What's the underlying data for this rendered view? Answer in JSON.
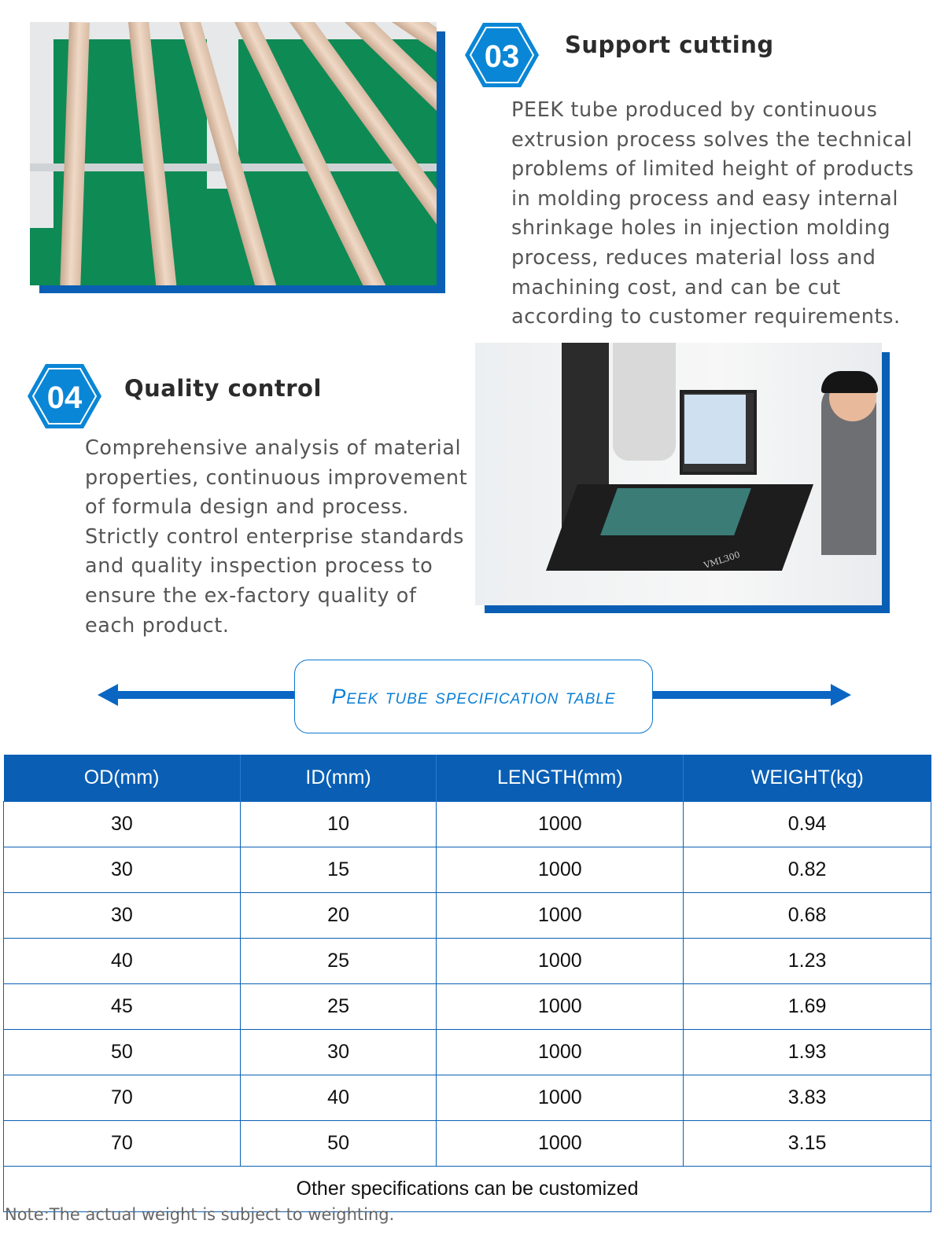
{
  "sections": [
    {
      "number": "03",
      "title": "Support cutting",
      "text": "PEEK tube produced by continuous extrusion process solves the technical problems of limited height of products in molding process and easy internal shrinkage holes in injection molding process, reduces material loss and machining cost, and can be cut according to customer requirements."
    },
    {
      "number": "04",
      "title": "Quality control",
      "text": "Comprehensive analysis of material properties, continuous improvement of formula design and process. Strictly control enterprise standards and quality inspection process to ensure the ex-factory quality of each product."
    }
  ],
  "photo_label": "VML300",
  "banner": "Peek tube specification table",
  "accent": "#0a5fb4",
  "table": {
    "headers": [
      "OD(mm)",
      "ID(mm)",
      "LENGTH(mm)",
      "WEIGHT(kg)"
    ],
    "rows": [
      [
        "30",
        "10",
        "1000",
        "0.94"
      ],
      [
        "30",
        "15",
        "1000",
        "0.82"
      ],
      [
        "30",
        "20",
        "1000",
        "0.68"
      ],
      [
        "40",
        "25",
        "1000",
        "1.23"
      ],
      [
        "45",
        "25",
        "1000",
        "1.69"
      ],
      [
        "50",
        "30",
        "1000",
        "1.93"
      ],
      [
        "70",
        "40",
        "1000",
        "3.83"
      ],
      [
        "70",
        "50",
        "1000",
        "3.15"
      ]
    ],
    "footer": "Other specifications can be customized"
  },
  "note": "Note:The actual weight is subject to weighting."
}
